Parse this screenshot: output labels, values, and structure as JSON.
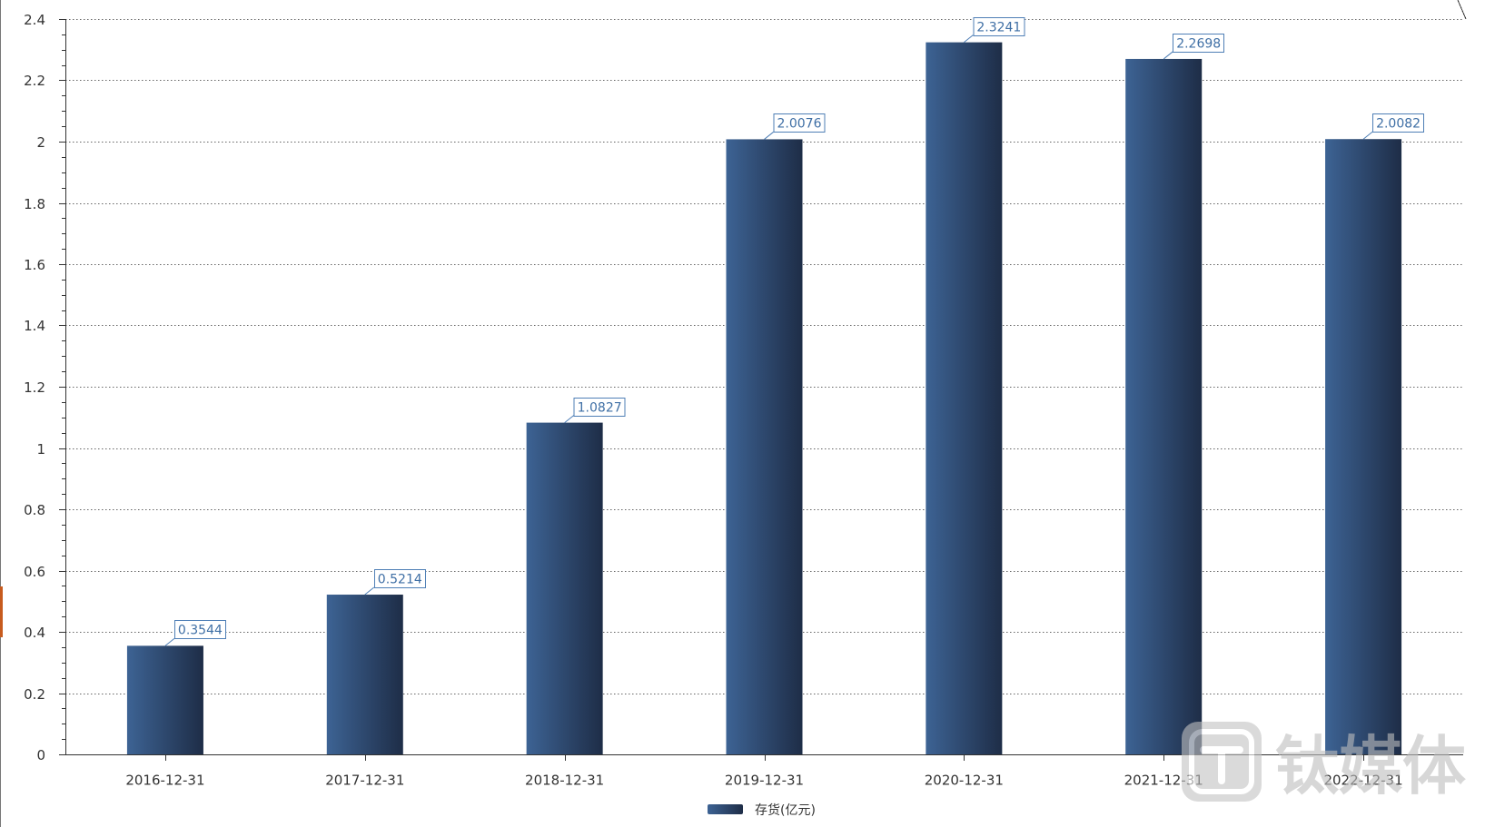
{
  "chart_data": {
    "type": "bar",
    "title": "",
    "xlabel": "",
    "ylabel": "",
    "categories": [
      "2016-12-31",
      "2017-12-31",
      "2018-12-31",
      "2019-12-31",
      "2020-12-31",
      "2021-12-31",
      "2022-12-31"
    ],
    "series": [
      {
        "name": "存货(亿元)",
        "values": [
          0.3544,
          0.5214,
          1.0827,
          2.0076,
          2.3241,
          2.2698,
          2.0082
        ]
      }
    ],
    "ylim": [
      0,
      2.4
    ],
    "yticks": [
      "0",
      "0.2",
      "0.4",
      "0.6",
      "0.8",
      "1",
      "1.2",
      "1.4",
      "1.6",
      "1.8",
      "2",
      "2.2",
      "2.4"
    ],
    "grid": true,
    "data_labels": true,
    "legend": "bottom-center"
  },
  "colors": {
    "bar_gradient_start": "#3d6394",
    "bar_gradient_end": "#1e2d47",
    "value_label_text": "#3f6fa5",
    "value_label_border": "#4f7fb6",
    "axis": "#333333",
    "gridline": "#666666",
    "watermark": "#bdbdbd"
  },
  "watermark": {
    "text": "钛媒体",
    "icon": "taimeiti-logo-icon"
  }
}
